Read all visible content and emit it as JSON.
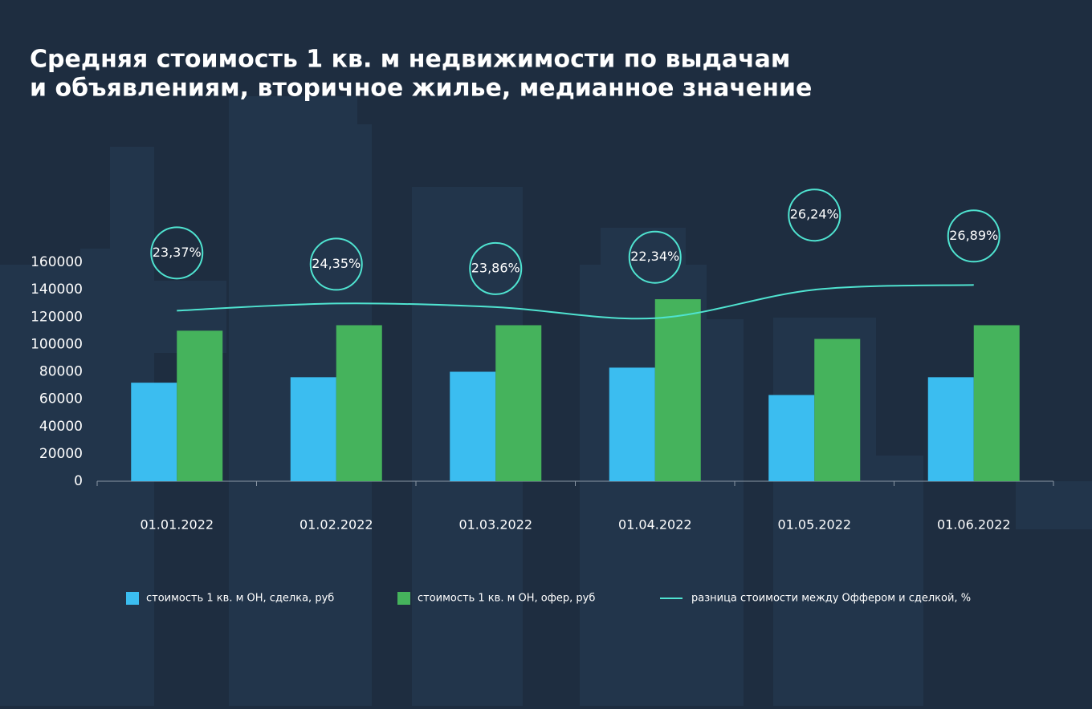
{
  "chart_data": {
    "type": "bar",
    "title": [
      "Средняя стоимость 1 кв. м недвижимости по выдачам",
      "и объявлениям, вторичное жилье, медианное значение"
    ],
    "categories": [
      "01.01.2022",
      "01.02.2022",
      "01.03.2022",
      "01.04.2022",
      "01.05.2022",
      "01.06.2022"
    ],
    "series": [
      {
        "name": "стоимость 1 кв. м ОН, сделка, руб",
        "color": "#3bbdf0",
        "values": [
          72000,
          76000,
          80000,
          83000,
          63000,
          76000
        ]
      },
      {
        "name": "стоимость 1 кв. м ОН, офер, руб",
        "color": "#45b35c",
        "values": [
          110000,
          114000,
          114000,
          133000,
          104000,
          114000
        ]
      },
      {
        "name": "разница стоимости между Оффером и сделкой, %",
        "color": "#4fe3d0",
        "type": "line",
        "axis": "y2",
        "values": [
          23.37,
          24.35,
          23.86,
          22.34,
          26.24,
          26.89
        ],
        "value_labels": [
          "23,37%",
          "24,35%",
          "23,86%",
          "22,34%",
          "26,24%",
          "26,89%"
        ]
      }
    ],
    "ylim": [
      0,
      160000
    ],
    "yticks": [
      0,
      20000,
      40000,
      60000,
      80000,
      100000,
      120000,
      140000,
      160000
    ],
    "y2lim": [
      0,
      30
    ],
    "grid": false
  }
}
